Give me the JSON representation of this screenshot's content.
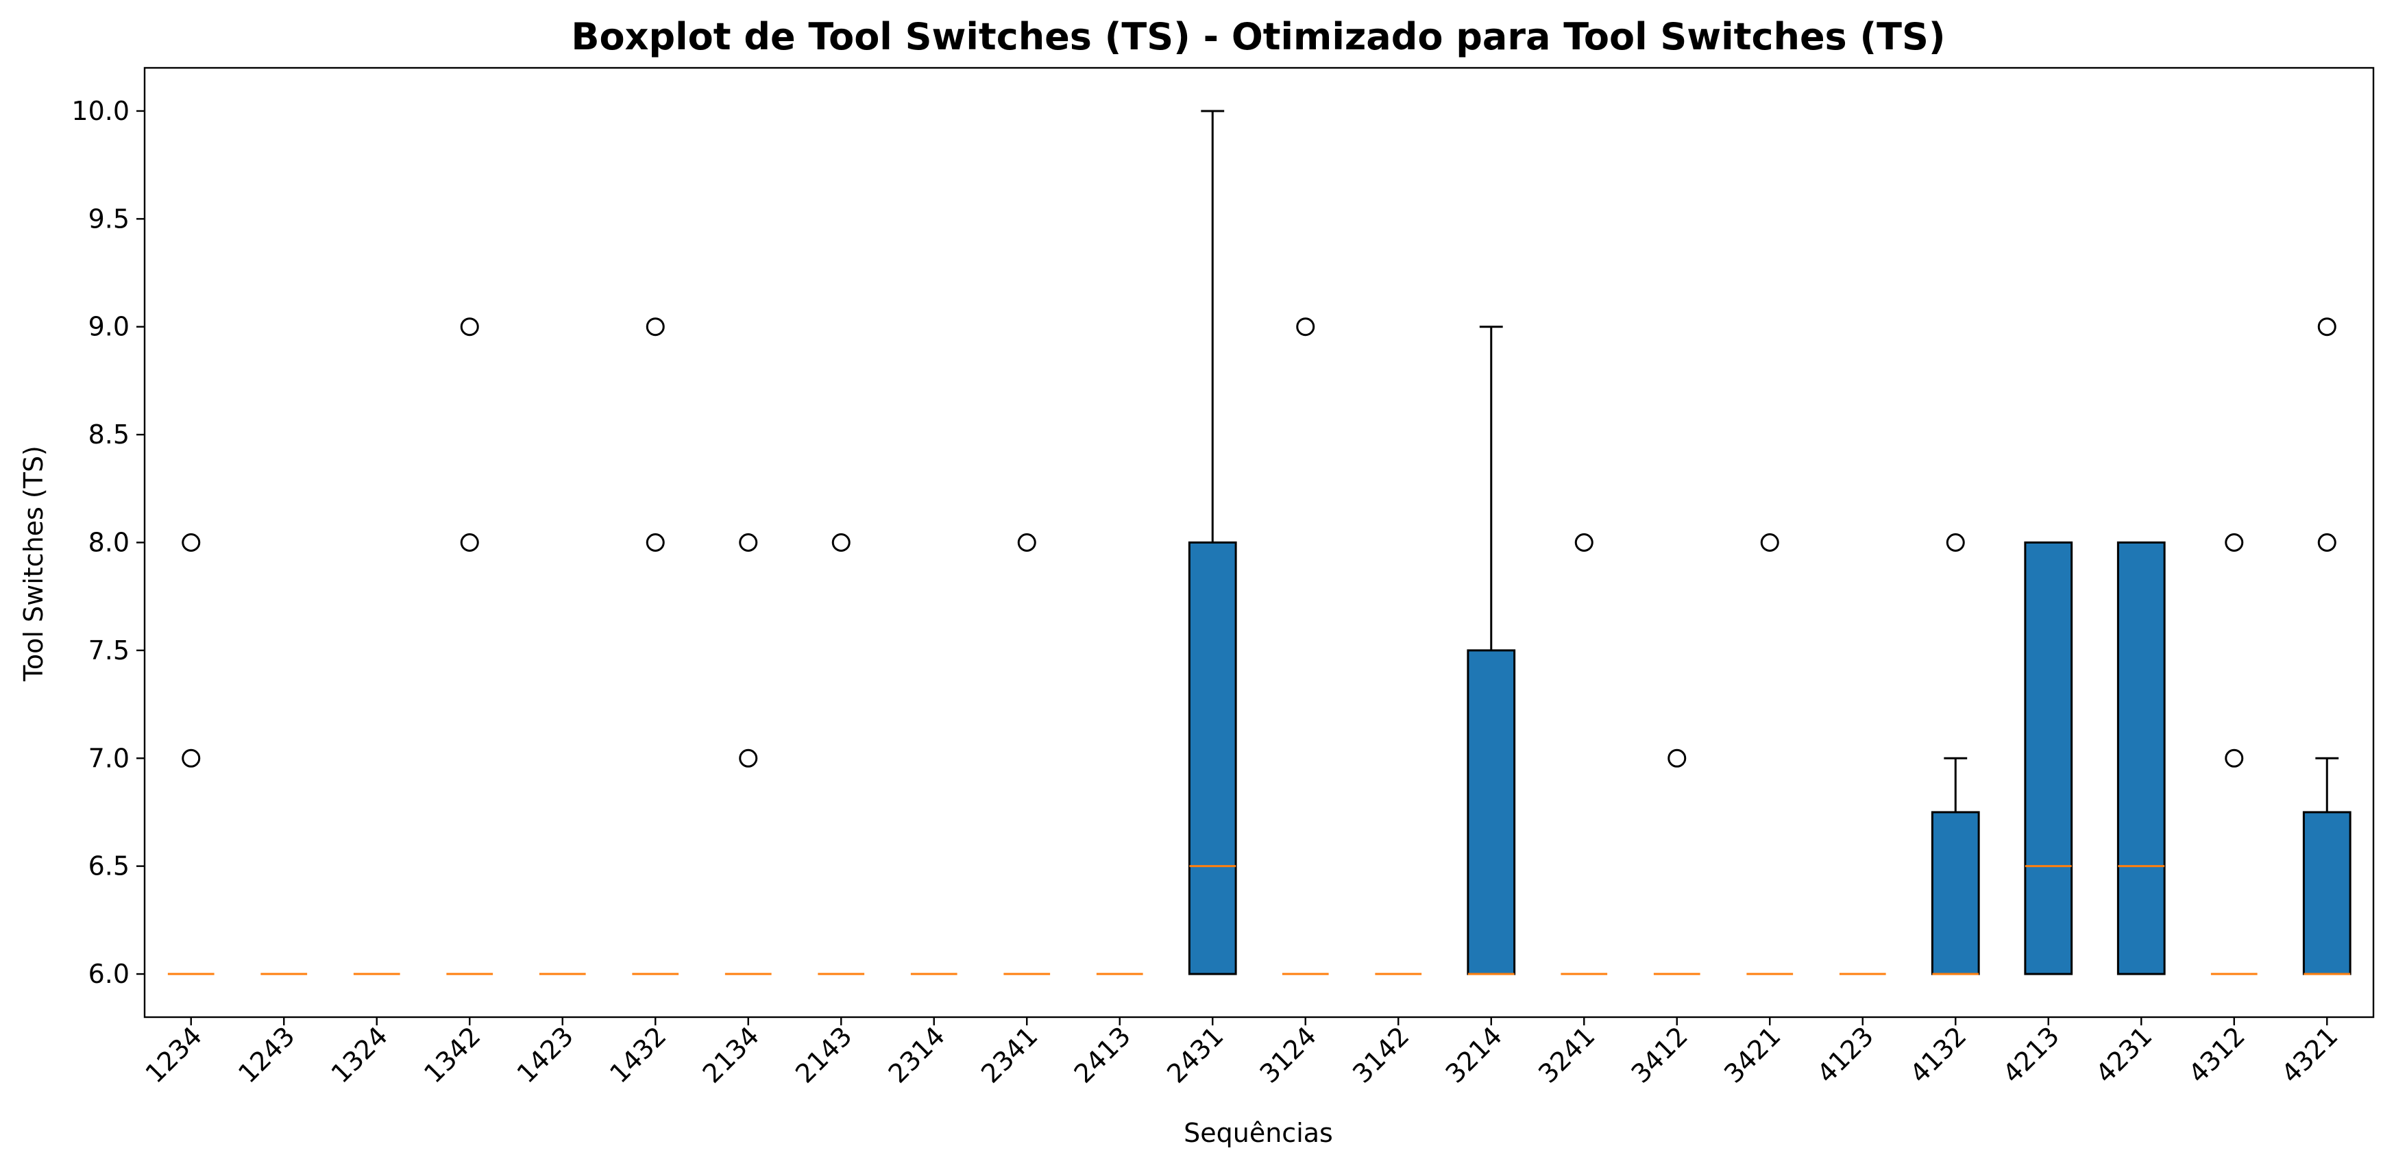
{
  "chart_data": {
    "type": "box",
    "title": "Boxplot de Tool Switches (TS) - Otimizado para Tool Switches (TS)",
    "xlabel": "Sequências",
    "ylabel": "Tool Switches (TS)",
    "ylim": [
      5.8,
      10.2
    ],
    "yticks": [
      "6.0",
      "6.5",
      "7.0",
      "7.5",
      "8.0",
      "8.5",
      "9.0",
      "9.5",
      "10.0"
    ],
    "grid": false,
    "colors": {
      "box": "#1f77b4",
      "median": "#ff7f0e",
      "edge": "#000000"
    },
    "categories": [
      "1234",
      "1243",
      "1324",
      "1342",
      "1423",
      "1432",
      "2134",
      "2143",
      "2314",
      "2341",
      "2413",
      "2431",
      "3124",
      "3142",
      "3214",
      "3241",
      "3412",
      "3421",
      "4123",
      "4132",
      "4213",
      "4231",
      "4312",
      "4321"
    ],
    "boxes": [
      {
        "q1": 6,
        "median": 6,
        "q3": 6,
        "whislo": 6,
        "whishi": 6,
        "fliers": [
          7,
          8
        ]
      },
      {
        "q1": 6,
        "median": 6,
        "q3": 6,
        "whislo": 6,
        "whishi": 6,
        "fliers": []
      },
      {
        "q1": 6,
        "median": 6,
        "q3": 6,
        "whislo": 6,
        "whishi": 6,
        "fliers": []
      },
      {
        "q1": 6,
        "median": 6,
        "q3": 6,
        "whislo": 6,
        "whishi": 6,
        "fliers": [
          8,
          9
        ]
      },
      {
        "q1": 6,
        "median": 6,
        "q3": 6,
        "whislo": 6,
        "whishi": 6,
        "fliers": []
      },
      {
        "q1": 6,
        "median": 6,
        "q3": 6,
        "whislo": 6,
        "whishi": 6,
        "fliers": [
          8,
          9
        ]
      },
      {
        "q1": 6,
        "median": 6,
        "q3": 6,
        "whislo": 6,
        "whishi": 6,
        "fliers": [
          7,
          8
        ]
      },
      {
        "q1": 6,
        "median": 6,
        "q3": 6,
        "whislo": 6,
        "whishi": 6,
        "fliers": [
          8
        ]
      },
      {
        "q1": 6,
        "median": 6,
        "q3": 6,
        "whislo": 6,
        "whishi": 6,
        "fliers": []
      },
      {
        "q1": 6,
        "median": 6,
        "q3": 6,
        "whislo": 6,
        "whishi": 6,
        "fliers": [
          8
        ]
      },
      {
        "q1": 6,
        "median": 6,
        "q3": 6,
        "whislo": 6,
        "whishi": 6,
        "fliers": []
      },
      {
        "q1": 6,
        "median": 6.5,
        "q3": 8,
        "whislo": 6,
        "whishi": 10,
        "fliers": []
      },
      {
        "q1": 6,
        "median": 6,
        "q3": 6,
        "whislo": 6,
        "whishi": 6,
        "fliers": [
          9
        ]
      },
      {
        "q1": 6,
        "median": 6,
        "q3": 6,
        "whislo": 6,
        "whishi": 6,
        "fliers": []
      },
      {
        "q1": 6,
        "median": 6,
        "q3": 7.5,
        "whislo": 6,
        "whishi": 9,
        "fliers": []
      },
      {
        "q1": 6,
        "median": 6,
        "q3": 6,
        "whislo": 6,
        "whishi": 6,
        "fliers": [
          8
        ]
      },
      {
        "q1": 6,
        "median": 6,
        "q3": 6,
        "whislo": 6,
        "whishi": 6,
        "fliers": [
          7
        ]
      },
      {
        "q1": 6,
        "median": 6,
        "q3": 6,
        "whislo": 6,
        "whishi": 6,
        "fliers": [
          8
        ]
      },
      {
        "q1": 6,
        "median": 6,
        "q3": 6,
        "whislo": 6,
        "whishi": 6,
        "fliers": []
      },
      {
        "q1": 6,
        "median": 6,
        "q3": 6.75,
        "whislo": 6,
        "whishi": 7,
        "fliers": [
          8
        ]
      },
      {
        "q1": 6,
        "median": 6.5,
        "q3": 8,
        "whislo": 6,
        "whishi": 8,
        "fliers": []
      },
      {
        "q1": 6,
        "median": 6.5,
        "q3": 8,
        "whislo": 6,
        "whishi": 8,
        "fliers": []
      },
      {
        "q1": 6,
        "median": 6,
        "q3": 6,
        "whislo": 6,
        "whishi": 6,
        "fliers": [
          7,
          8
        ]
      },
      {
        "q1": 6,
        "median": 6,
        "q3": 6.75,
        "whislo": 6,
        "whishi": 7,
        "fliers": [
          8,
          9
        ]
      }
    ]
  }
}
